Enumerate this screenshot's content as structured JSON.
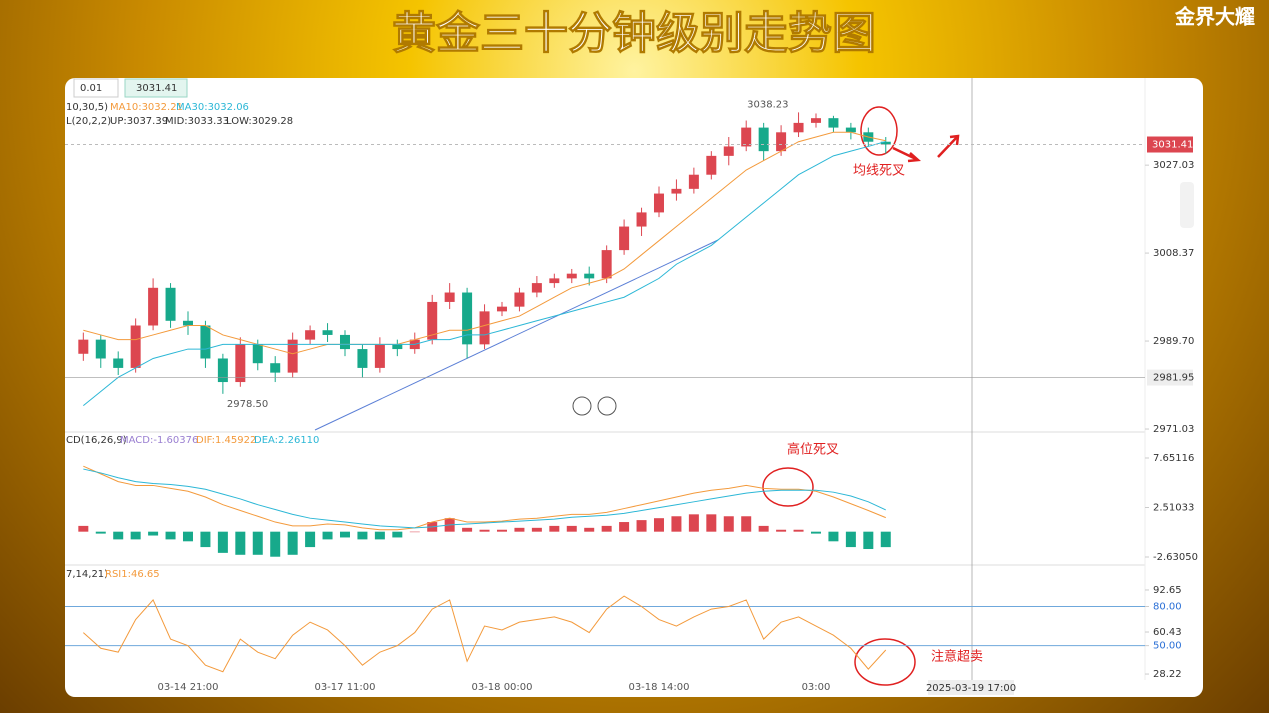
{
  "title": "黄金三十分钟级别走势图",
  "brand": "金界大耀",
  "toolbar": {
    "step": "0.01",
    "price": "3031.41"
  },
  "crosshair": {
    "time": "2025-03-19 17:00",
    "price": 2981.95
  },
  "chart_data": [
    {
      "type": "candlestick",
      "indicator": "10,30,5)",
      "boll": {
        "label": "L(20,2,2)",
        "items": [
          "UP:3037.39",
          "MID:3033.33",
          "LOW:3029.28"
        ]
      },
      "categories": [
        null,
        null,
        null,
        null,
        null,
        null,
        "03-14 21:00",
        null,
        null,
        null,
        null,
        null,
        null,
        null,
        null,
        "03-17 11:00",
        null,
        null,
        null,
        null,
        null,
        null,
        null,
        null,
        "03-18 00:00",
        null,
        null,
        null,
        null,
        null,
        null,
        null,
        null,
        "03-18 14:00",
        null,
        null,
        null,
        null,
        null,
        null,
        null,
        null,
        "03:00",
        null,
        null,
        null,
        null
      ],
      "open": [
        2987,
        2990,
        2986,
        2984,
        2993,
        3001,
        2994,
        2993,
        2986,
        2981,
        2989,
        2985,
        2983,
        2990,
        2992,
        2991,
        2988,
        2984,
        2989,
        2988,
        2990,
        2998,
        3000,
        2989,
        2996,
        2997,
        3000,
        3002,
        3003,
        3004,
        3003,
        3009,
        3014,
        3017,
        3021,
        3022,
        3025,
        3029,
        3031,
        3035,
        3030,
        3034,
        3036,
        3037,
        3035,
        3034,
        3032
      ],
      "high": [
        2991.5,
        2991,
        2987.5,
        2994.5,
        3003,
        3002,
        2996,
        2994,
        2987,
        2990.5,
        2990,
        2986.5,
        2991.5,
        2993,
        2993.5,
        2992,
        2989,
        2990.5,
        2990,
        2991.5,
        2999.5,
        3002,
        3001,
        2997.5,
        2998,
        3001,
        3003.5,
        3004,
        3005,
        3005.5,
        3010,
        3015.5,
        3018,
        3022.5,
        3024,
        3026.5,
        3030,
        3033,
        3036.5,
        3036,
        3035.5,
        3038.23,
        3038,
        3037.5,
        3036,
        3035,
        3033
      ],
      "low": [
        2985.5,
        2984,
        2982.5,
        2983,
        2992,
        2992.5,
        2991,
        2984,
        2978.5,
        2980,
        2983.5,
        2981,
        2982,
        2989,
        2989.5,
        2986.5,
        2982,
        2983,
        2986.5,
        2987,
        2989,
        2996.5,
        2986,
        2988,
        2995,
        2996,
        2999,
        3001,
        3002,
        3001.5,
        3002,
        3008,
        3012,
        3016,
        3019.5,
        3021,
        3024,
        3027,
        3030,
        3028,
        3029,
        3033,
        3035,
        3034,
        3032.5,
        3031,
        3029.5
      ],
      "close": [
        2990,
        2986,
        2984,
        2993,
        3001,
        2994,
        2993,
        2986,
        2981,
        2989,
        2985,
        2983,
        2990,
        2992,
        2991,
        2988,
        2984,
        2989,
        2988,
        2990,
        2998,
        3000,
        2989,
        2996,
        2997,
        3000,
        3002,
        3003,
        3004,
        3003,
        3009,
        3014,
        3017,
        3021,
        3022,
        3025,
        3029,
        3031,
        3035,
        3030,
        3034,
        3036,
        3037,
        3035,
        3034,
        3032,
        3031.41
      ],
      "series": [
        {
          "name": "MA10:3032.21",
          "color": "#f39a3c",
          "values": [
            2992,
            2991,
            2990,
            2990,
            2991,
            2992,
            2993,
            2993,
            2991,
            2990,
            2989,
            2988,
            2987,
            2988,
            2989,
            2989,
            2989,
            2989,
            2989,
            2990,
            2991,
            2992,
            2992,
            2993,
            2994,
            2995,
            2997,
            2999,
            3001,
            3002,
            3003,
            3005,
            3008,
            3011,
            3014,
            3017,
            3020,
            3023,
            3026,
            3028,
            3030,
            3032,
            3033,
            3034,
            3034,
            3033,
            3032.21
          ]
        },
        {
          "name": "MA30:3032.06",
          "color": "#2cb7d6",
          "values": [
            2976,
            2979,
            2982,
            2984,
            2986,
            2987,
            2988,
            2988,
            2989,
            2989,
            2989,
            2989,
            2989,
            2989,
            2989,
            2989,
            2989,
            2989,
            2989,
            2989,
            2990,
            2990,
            2991,
            2991,
            2992,
            2993,
            2994,
            2995,
            2996,
            2997,
            2998,
            2999,
            3001,
            3003,
            3006,
            3008,
            3010,
            3013,
            3016,
            3019,
            3022,
            3025,
            3027,
            3029,
            3030,
            3031,
            3032.06
          ]
        }
      ],
      "up_color": "#dc4650",
      "down_color": "#17a98b",
      "ylim": [
        2970.4,
        3045.1
      ],
      "yticks": [
        2971.03,
        {
          "value": 2989.7,
          "label": "2989.70"
        },
        3008.37,
        3027.03
      ],
      "last_price": 3031.41,
      "high_label": 3038.23,
      "low_label": {
        "value": 2978.5,
        "label": "2978.50"
      },
      "annotation": "均线死叉"
    },
    {
      "type": "macd",
      "indicator": "CD(16,26,9)",
      "series": [
        {
          "name": "MACD:-1.60376",
          "color": "#9a7fd1",
          "values": [
            0.6,
            -0.2,
            -0.8,
            -0.8,
            -0.4,
            -0.8,
            -1.0,
            -1.6,
            -2.2,
            -2.4,
            -2.4,
            -2.6,
            -2.4,
            -1.6,
            -0.8,
            -0.6,
            -0.8,
            -0.8,
            -0.6,
            0,
            1.0,
            1.4,
            0.4,
            0.2,
            0.2,
            0.4,
            0.4,
            0.6,
            0.6,
            0.4,
            0.6,
            1.0,
            1.2,
            1.4,
            1.6,
            1.8,
            1.8,
            1.6,
            1.6,
            0.6,
            0.2,
            0.2,
            -0.2,
            -1.0,
            -1.6,
            -1.8,
            -1.60376
          ]
        },
        {
          "name": "DIF:1.45922",
          "color": "#f39a3c",
          "values": [
            6.8,
            6.0,
            5.2,
            4.8,
            4.8,
            4.5,
            4.2,
            3.6,
            2.8,
            2.2,
            1.6,
            1.0,
            0.6,
            0.6,
            0.8,
            0.7,
            0.4,
            0.2,
            0.2,
            0.4,
            1.0,
            1.4,
            1.0,
            1.0,
            1.1,
            1.3,
            1.4,
            1.6,
            1.8,
            1.8,
            2.0,
            2.4,
            2.8,
            3.2,
            3.6,
            4.0,
            4.3,
            4.5,
            4.8,
            4.5,
            4.4,
            4.4,
            4.2,
            3.6,
            2.9,
            2.2,
            1.46
          ]
        },
        {
          "name": "DEA:2.26110",
          "color": "#2cb7d6",
          "values": [
            6.5,
            6.1,
            5.6,
            5.2,
            5.0,
            4.9,
            4.7,
            4.4,
            3.9,
            3.4,
            2.8,
            2.3,
            1.8,
            1.4,
            1.2,
            1.0,
            0.8,
            0.6,
            0.5,
            0.4,
            0.5,
            0.7,
            0.8,
            0.9,
            1.0,
            1.1,
            1.2,
            1.3,
            1.5,
            1.6,
            1.7,
            1.9,
            2.2,
            2.5,
            2.8,
            3.1,
            3.4,
            3.7,
            4.0,
            4.2,
            4.3,
            4.3,
            4.3,
            4.1,
            3.7,
            3.1,
            2.26
          ]
        }
      ],
      "ylim": [
        -3.46,
        8.48
      ],
      "yticks": [
        {
          "value": -2.6305,
          "label": "-2.63050"
        },
        2.51033,
        7.65116
      ],
      "annotation": "高位死叉"
    },
    {
      "type": "rsi",
      "indicator": "7,14,21)",
      "series": [
        {
          "name": "RSI1:46.65",
          "color": "#f39a3c",
          "values": [
            60,
            48,
            45,
            70,
            85,
            55,
            50,
            35,
            30,
            55,
            45,
            40,
            58,
            68,
            62,
            50,
            35,
            45,
            50,
            60,
            78,
            85,
            38,
            65,
            62,
            68,
            70,
            72,
            68,
            60,
            78,
            88,
            80,
            70,
            65,
            72,
            78,
            80,
            85,
            55,
            68,
            72,
            65,
            58,
            48,
            32,
            46.65
          ]
        }
      ],
      "ylim": [
        16,
        98
      ],
      "yticks": [
        28.22,
        {
          "value": 50,
          "label": "50.00"
        },
        60.43,
        {
          "value": 80,
          "label": "80.00"
        },
        92.65
      ],
      "levels": [
        {
          "value": 50,
          "label": "50.00"
        },
        {
          "value": 80,
          "label": "80.00"
        }
      ],
      "annotation": "注意超卖"
    }
  ]
}
